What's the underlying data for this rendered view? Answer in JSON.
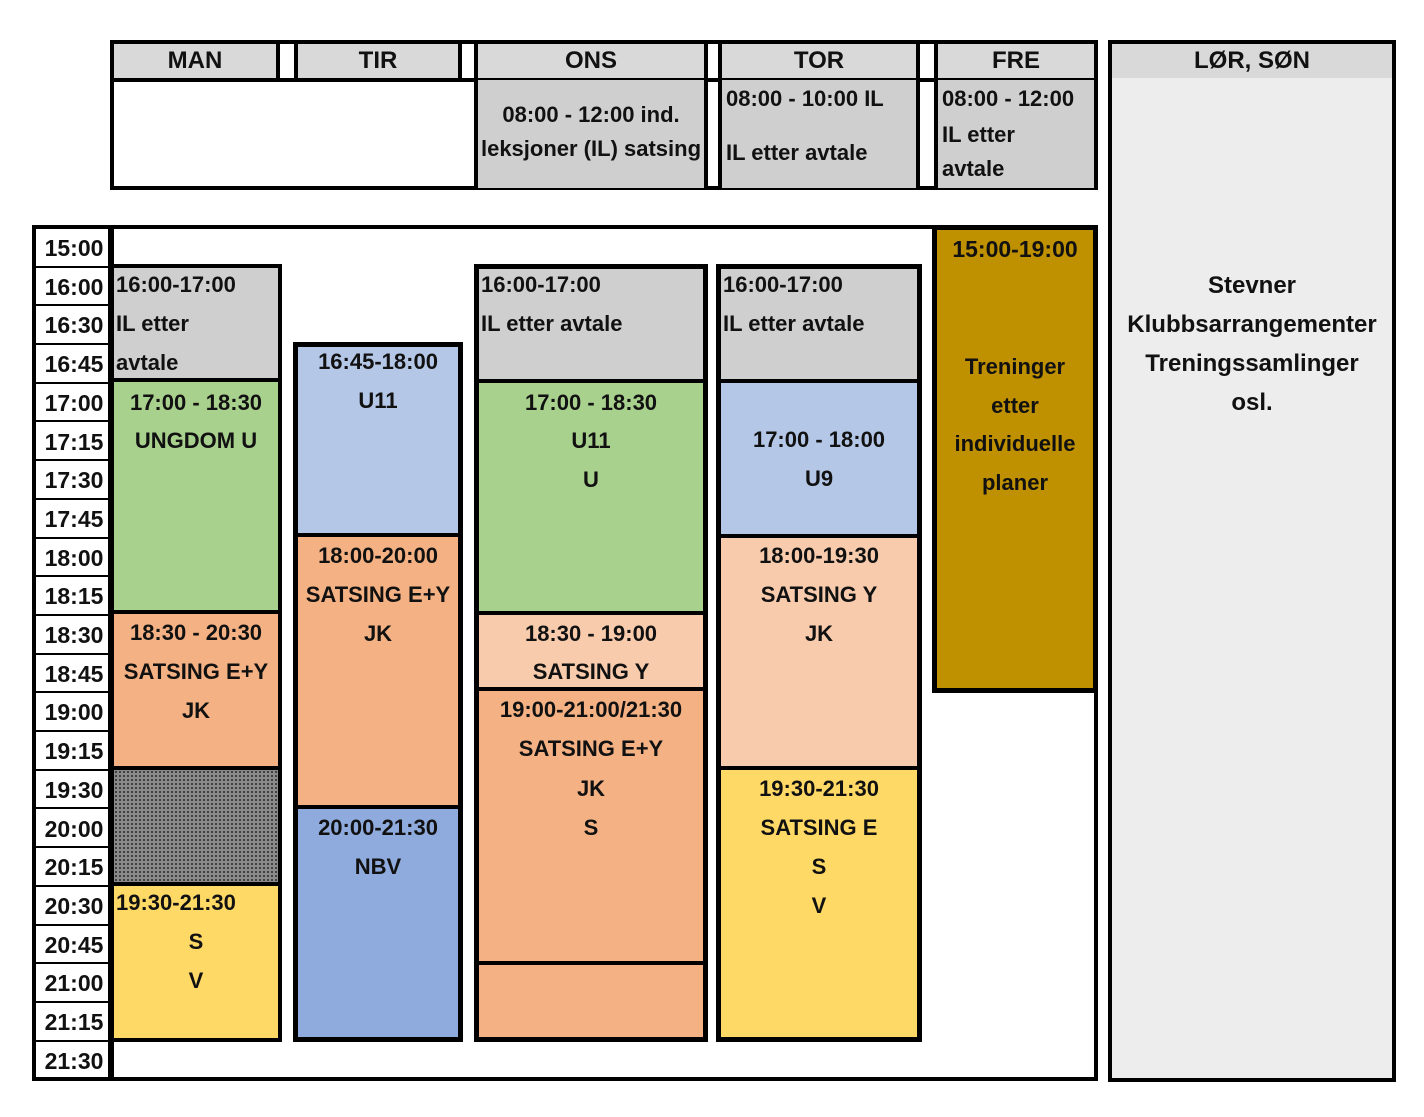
{
  "days": {
    "man": "MAN",
    "tir": "TIR",
    "ons": "ONS",
    "tor": "TOR",
    "fre": "FRE",
    "weekend": "LØR, SØN"
  },
  "morning": {
    "ons": [
      "08:00 - 12:00 ind.",
      "leksjoner (IL) satsing"
    ],
    "tor": [
      "08:00 - 10:00 IL",
      "IL etter  avtale"
    ],
    "fre": [
      "08:00 - 12:00",
      "IL etter",
      "avtale"
    ]
  },
  "times": [
    "15:00",
    "16:00",
    "16:30",
    "16:45",
    "17:00",
    "17:15",
    "17:30",
    "17:45",
    "18:00",
    "18:15",
    "18:30",
    "18:45",
    "19:00",
    "19:15",
    "19:30",
    "20:00",
    "20:15",
    "20:30",
    "20:45",
    "21:00",
    "21:15",
    "21:30"
  ],
  "blocks": {
    "man": {
      "il": [
        "16:00-17:00",
        "IL etter",
        " avtale"
      ],
      "ungdom": [
        "17:00 - 18:30",
        "UNGDOM U"
      ],
      "satsing": [
        "18:30 - 20:30",
        "SATSING E+Y",
        "JK"
      ],
      "late": [
        "19:30-21:30",
        "S",
        "V"
      ]
    },
    "tir": {
      "u11": [
        "16:45-18:00",
        "U11"
      ],
      "satsing": [
        "18:00-20:00",
        "SATSING E+Y",
        "JK"
      ],
      "nbv": [
        "20:00-21:30",
        "NBV"
      ]
    },
    "ons": {
      "il": [
        "16:00-17:00",
        "IL etter  avtale"
      ],
      "u11": [
        "17:00 - 18:30",
        "U11",
        "U"
      ],
      "satsingy": [
        "18:30 - 19:00",
        "SATSING Y"
      ],
      "satsingey": [
        "19:00-21:00/21:30",
        "SATSING E+Y",
        "JK",
        "S"
      ]
    },
    "tor": {
      "il": [
        "16:00-17:00",
        "IL etter  avtale"
      ],
      "u9": [
        "17:00 - 18:00",
        "U9"
      ],
      "satsingy": [
        "18:00-19:30",
        "SATSING Y",
        "JK"
      ],
      "satsinge": [
        "19:30-21:30",
        "SATSING E",
        "S",
        "V"
      ]
    },
    "fre": {
      "treninger": [
        "15:00-19:00",
        "Treninger",
        "etter",
        "individuelle",
        "planer"
      ]
    },
    "weekend": [
      "Stevner",
      "Klubbsarrangementer",
      "Treningssamlinger",
      "osl."
    ]
  },
  "colors": {
    "header": "#d9d9d9",
    "gray": "#cfcfcf",
    "green": "#a9d18e",
    "light_blue": "#b4c7e7",
    "blue": "#8faadc",
    "orange": "#f4b183",
    "peach": "#f8cbad",
    "yellow": "#ffd966",
    "gold": "#bf9000",
    "weekend": "#ededed"
  }
}
